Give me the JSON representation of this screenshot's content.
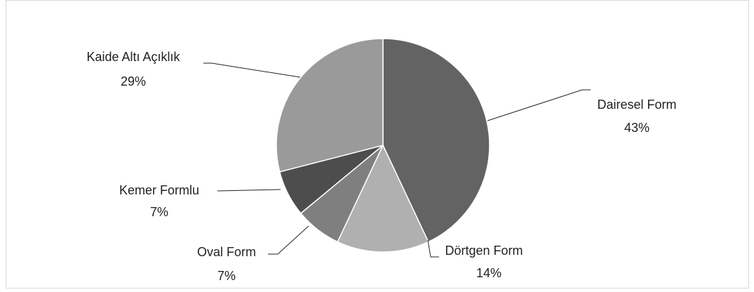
{
  "chart_data": {
    "type": "pie",
    "categories": [
      "Dairesel Form",
      "Dörtgen Form",
      "Oval Form",
      "Kemer Formlu",
      "Kaide Altı Açıklık"
    ],
    "values": [
      43,
      14,
      7,
      7,
      29
    ],
    "value_labels": [
      "43%",
      "14%",
      "7%",
      "7%",
      "29%"
    ],
    "colors": [
      "#636363",
      "#b0b0b0",
      "#7f7f7f",
      "#4d4d4d",
      "#9a9a9a"
    ]
  }
}
